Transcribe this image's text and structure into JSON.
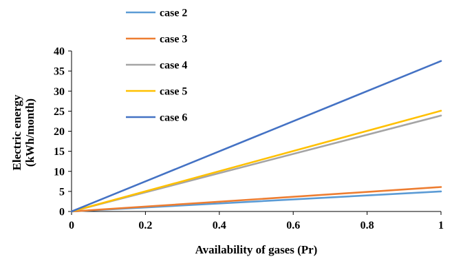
{
  "chart_data": {
    "type": "line",
    "xlabel": "Availability of gases (Pr)",
    "ylabel_lines": [
      "Electric energy",
      "(kWh/month)"
    ],
    "x_ticks": [
      "0",
      "0.2",
      "0.4",
      "0.6",
      "0.8",
      "1"
    ],
    "y_ticks": [
      "0",
      "5",
      "10",
      "15",
      "20",
      "25",
      "30",
      "35",
      "40"
    ],
    "xlim": [
      0,
      1
    ],
    "ylim": [
      0,
      40
    ],
    "legend_position": "top-center",
    "grid": false,
    "series": [
      {
        "name": "case 2",
        "color": "#5B9BD5",
        "x": [
          0,
          1
        ],
        "y": [
          0,
          5.0
        ]
      },
      {
        "name": "case 3",
        "color": "#ED7D31",
        "x": [
          0,
          1
        ],
        "y": [
          0,
          6.1
        ]
      },
      {
        "name": "case 4",
        "color": "#A5A5A5",
        "x": [
          0,
          1
        ],
        "y": [
          0,
          23.9
        ]
      },
      {
        "name": "case 5",
        "color": "#FFC000",
        "x": [
          0,
          1
        ],
        "y": [
          0,
          25.1
        ]
      },
      {
        "name": "case 6",
        "color": "#4472C4",
        "x": [
          0,
          1
        ],
        "y": [
          0,
          37.5
        ]
      }
    ]
  }
}
